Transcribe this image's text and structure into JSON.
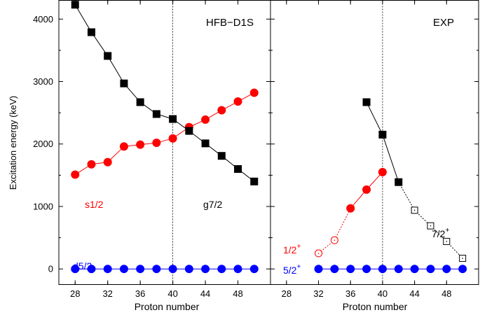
{
  "chart_data": [
    {
      "type": "line",
      "panel_label": "HFB−D1S",
      "xlabel": "Proton number",
      "ylabel": "Excitation energy (keV)",
      "xlim": [
        26,
        52
      ],
      "ylim": [
        -250,
        4300
      ],
      "x_ticks": [
        "28",
        "32",
        "36",
        "40",
        "44",
        "48"
      ],
      "y_ticks": [
        "0",
        "1000",
        "2000",
        "3000",
        "4000"
      ],
      "vline_x": 40,
      "series": [
        {
          "name": "d5/2",
          "color": "#0000ff",
          "marker": "circle",
          "filled": true,
          "x": [
            28,
            30,
            32,
            34,
            36,
            38,
            40,
            42,
            44,
            46,
            48,
            50
          ],
          "y": [
            0,
            0,
            0,
            0,
            0,
            0,
            0,
            0,
            0,
            0,
            0,
            0
          ]
        },
        {
          "name": "s1/2",
          "color": "#ff0000",
          "marker": "circle",
          "filled": true,
          "x": [
            28,
            30,
            32,
            34,
            36,
            38,
            40,
            42,
            44,
            46,
            48,
            50
          ],
          "y": [
            1510,
            1675,
            1710,
            1960,
            1990,
            2020,
            2090,
            2270,
            2390,
            2540,
            2680,
            2820
          ]
        },
        {
          "name": "g7/2",
          "color": "#000000",
          "marker": "square",
          "filled": true,
          "x": [
            28,
            30,
            32,
            34,
            36,
            38,
            40,
            42,
            44,
            46,
            48,
            50
          ],
          "y": [
            4230,
            3790,
            3410,
            2970,
            2670,
            2480,
            2400,
            2210,
            2010,
            1810,
            1600,
            1400
          ]
        }
      ]
    },
    {
      "type": "line",
      "panel_label": "EXP",
      "xlabel": "Proton number",
      "xlim": [
        26,
        52
      ],
      "ylim": [
        -250,
        4300
      ],
      "x_ticks": [
        "28",
        "32",
        "36",
        "40",
        "44",
        "48"
      ],
      "vline_x": 40,
      "series": [
        {
          "name": "5/2+",
          "color": "#0000ff",
          "marker": "circle",
          "filled": true,
          "x": [
            32,
            34,
            36,
            38,
            40,
            42,
            44,
            46,
            48,
            50
          ],
          "y": [
            0,
            0,
            0,
            0,
            0,
            0,
            0,
            0,
            0,
            0
          ]
        },
        {
          "name": "1/2+",
          "color": "#ff0000",
          "marker": "circle",
          "points": [
            {
              "x": 32,
              "y": 250,
              "filled": false
            },
            {
              "x": 34,
              "y": 460,
              "filled": false
            },
            {
              "x": 36,
              "y": 970,
              "filled": true
            },
            {
              "x": 38,
              "y": 1270,
              "filled": true
            },
            {
              "x": 40,
              "y": 1550,
              "filled": true
            }
          ],
          "dotted_until_index": 2
        },
        {
          "name": "7/2+",
          "color": "#000000",
          "marker": "square",
          "points": [
            {
              "x": 38,
              "y": 2670,
              "filled": true
            },
            {
              "x": 40,
              "y": 2150,
              "filled": true
            },
            {
              "x": 42,
              "y": 1390,
              "filled": true
            },
            {
              "x": 44,
              "y": 940,
              "filled": false
            },
            {
              "x": 46,
              "y": 690,
              "filled": false
            },
            {
              "x": 48,
              "y": 440,
              "filled": false
            },
            {
              "x": 50,
              "y": 170,
              "filled": false
            }
          ],
          "dotted_from_index": 2
        }
      ],
      "labels": {
        "half_plus_base": "1/2",
        "half_plus_sup": "+",
        "fivehalf_plus_base": "5/2",
        "fivehalf_plus_sup": "+",
        "sevenhalf_plus_base": "7/2",
        "sevenhalf_plus_sup": "+"
      }
    }
  ]
}
